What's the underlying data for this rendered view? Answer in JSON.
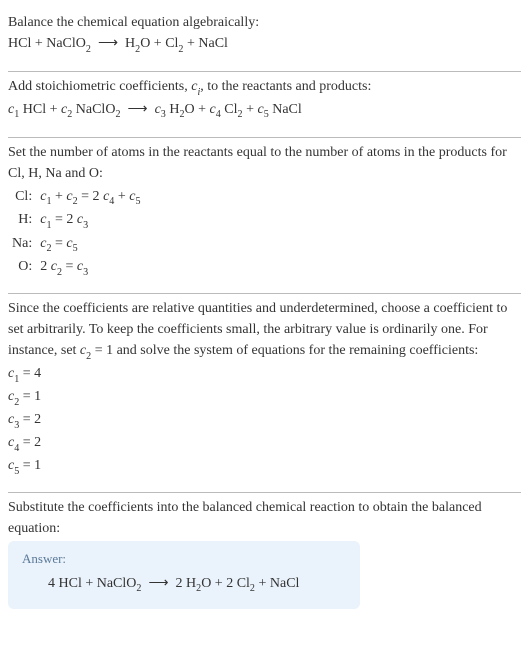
{
  "section1": {
    "intro": "Balance the chemical equation algebraically:"
  },
  "section2": {
    "intro": "Add stoichiometric coefficients, ",
    "intro2": ", to the reactants and products:"
  },
  "section3": {
    "intro": "Set the number of atoms in the reactants equal to the number of atoms in the products for Cl, H, Na and O:",
    "rows": [
      {
        "el": "Cl:"
      },
      {
        "el": "H:"
      },
      {
        "el": "Na:"
      },
      {
        "el": "O:"
      }
    ]
  },
  "section4": {
    "intro": "Since the coefficients are relative quantities and underdetermined, choose a coefficient to set arbitrarily. To keep the coefficients small, the arbitrary value is ordinarily one. For instance, set ",
    "intro2": " and solve the system of equations for the remaining coefficients:",
    "coeffs": {
      "c1": "4",
      "c2": "1",
      "c3": "2",
      "c4": "2",
      "c5": "1"
    }
  },
  "section5": {
    "intro": "Substitute the coefficients into the balanced chemical reaction to obtain the balanced equation:",
    "answer_label": "Answer:"
  },
  "colors": {
    "text": "#333333",
    "rule": "#bbbbbb",
    "answer_bg": "#eaf2fb",
    "answer_label": "#5a7a99"
  }
}
